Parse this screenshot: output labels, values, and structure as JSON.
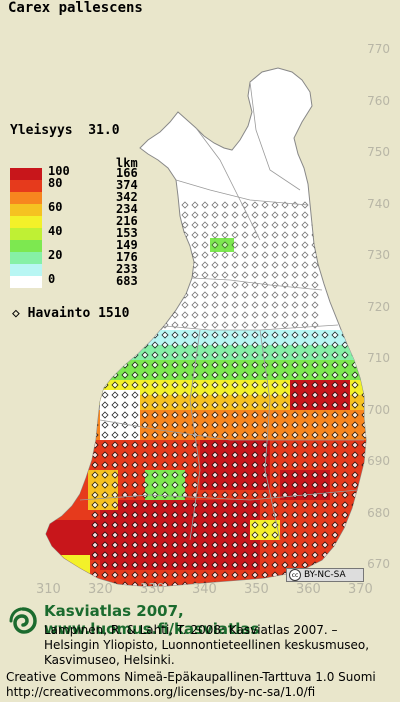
{
  "title": "Carex pallescens",
  "frequency_label": "Yleisyys",
  "frequency_value": "31.0",
  "legend": {
    "count_header": "lkm",
    "items": [
      {
        "value": "100",
        "count": "166",
        "color": "#c8161b"
      },
      {
        "value": "80",
        "count": "374",
        "color": "#e63a1c"
      },
      {
        "value": "",
        "count": "342",
        "color": "#f7861f"
      },
      {
        "value": "60",
        "count": "234",
        "color": "#f5c221"
      },
      {
        "value": "",
        "count": "216",
        "color": "#f3f129"
      },
      {
        "value": "40",
        "count": "153",
        "color": "#bff034"
      },
      {
        "value": "",
        "count": "149",
        "color": "#7de850"
      },
      {
        "value": "20",
        "count": "176",
        "color": "#86f0a6"
      },
      {
        "value": "",
        "count": "233",
        "color": "#b8f6f3"
      },
      {
        "value": "0",
        "count": "683",
        "color": "#ffffff"
      }
    ]
  },
  "observations_label": "Havainto",
  "observations_value": "1510",
  "y_ticks": [
    "770",
    "760",
    "750",
    "740",
    "730",
    "720",
    "710",
    "700",
    "690",
    "680",
    "670"
  ],
  "x_ticks": [
    "310",
    "320",
    "330",
    "340",
    "350",
    "360",
    "370"
  ],
  "license_badge": "BY-NC-SA",
  "footer": {
    "title": "Kasviatlas 2007, www.luomus.fi/kasviatlas",
    "reference": "Lampinen, R. & Lahti, T. 2008: Kasviatlas 2007. – Helsingin Yliopisto, Luonnontieteellinen keskusmuseo, Kasvimuseo, Helsinki.",
    "license": "Creative Commons Nimeä-Epäkaupallinen-Tarttuva 1.0 Suomi http://creativecommons.org/licenses/by-nc-sa/1.0/fi"
  },
  "colors": {
    "background": "#e9e6cb",
    "land": "#ffffff",
    "border": "#999999",
    "accent": "#1b6b2e"
  }
}
